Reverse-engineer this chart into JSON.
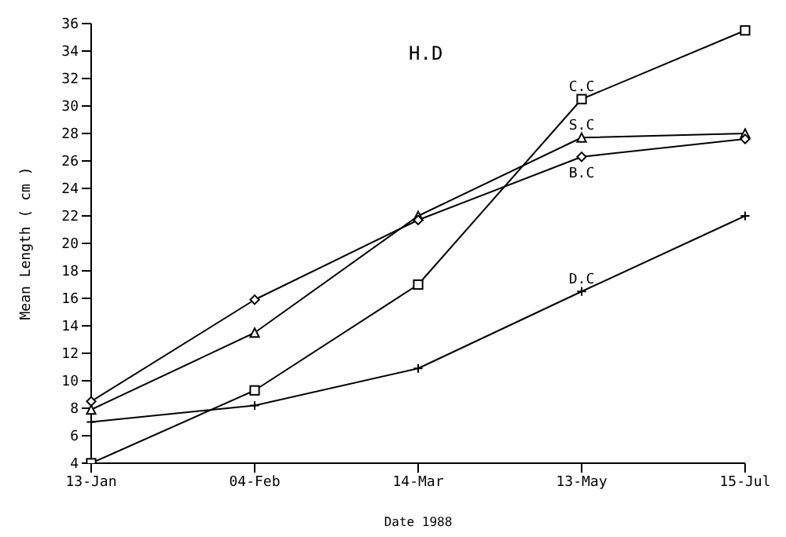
{
  "chart_data": {
    "type": "line",
    "title": "H.D",
    "xlabel": "Date 1988",
    "ylabel": "Mean Length ( cm )",
    "categories": [
      "13-Jan",
      "04-Feb",
      "14-Mar",
      "13-May",
      "15-Jul"
    ],
    "series": [
      {
        "name": "C.C",
        "color": "#000000",
        "marker": "square",
        "values": [
          4,
          9.3,
          17,
          30.5,
          35.5
        ]
      },
      {
        "name": "S.C",
        "color": "#000000",
        "marker": "triangle",
        "values": [
          7.9,
          13.5,
          22,
          27.7,
          28
        ]
      },
      {
        "name": "B.C",
        "color": "#000000",
        "marker": "diamond",
        "values": [
          8.5,
          15.9,
          21.7,
          26.3,
          27.6
        ]
      },
      {
        "name": "D.C",
        "color": "#000000",
        "marker": "cross",
        "values": [
          7,
          8.2,
          10.9,
          16.5,
          22
        ]
      }
    ],
    "ylim": [
      4,
      36
    ],
    "yticks": [
      4,
      6,
      8,
      10,
      12,
      14,
      16,
      18,
      20,
      22,
      24,
      26,
      28,
      30,
      32,
      34,
      36
    ],
    "grid": false,
    "legend": false,
    "line_style": "solid"
  }
}
